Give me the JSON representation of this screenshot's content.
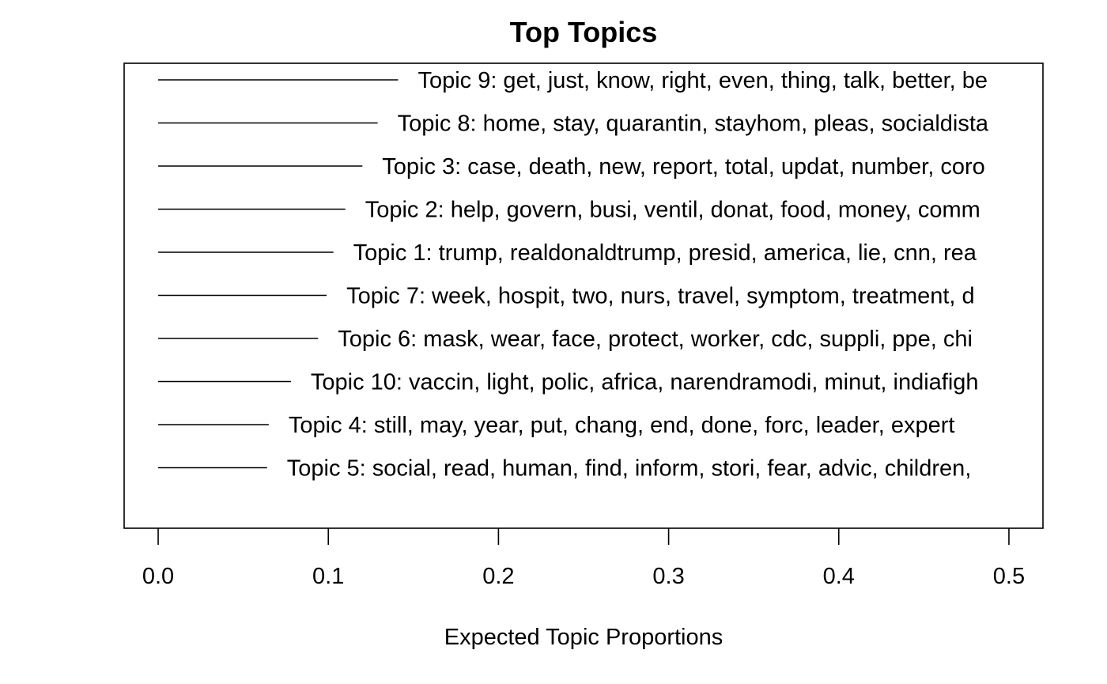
{
  "chart_data": {
    "type": "bar",
    "orientation": "horizontal",
    "title": "Top Topics",
    "xlabel": "Expected Topic Proportions",
    "ylabel": "",
    "xlim": [
      -0.02,
      0.52
    ],
    "xticks": [
      0.0,
      0.1,
      0.2,
      0.3,
      0.4,
      0.5
    ],
    "xtick_labels": [
      "0.0",
      "0.1",
      "0.2",
      "0.3",
      "0.4",
      "0.5"
    ],
    "grid": false,
    "series": [
      {
        "categories": [
          "Topic 9: get, just, know, right, even, thing, talk, better, be",
          "Topic 8: home, stay, quarantin, stayhom, pleas, socialdista",
          "Topic 3: case, death, new, report, total, updat, number, coro",
          "Topic 2: help, govern, busi, ventil, donat, food, money, comm",
          "Topic 1: trump, realdonaldtrump, presid, america, lie, cnn, rea",
          "Topic 7: week, hospit, two, nurs, travel, symptom, treatment, d",
          "Topic 6: mask, wear, face, protect, worker, cdc, suppli, ppe, chi",
          "Topic 10: vaccin, light, polic, africa, narendramodi, minut, indiafigh",
          "Topic 4: still, may, year, put, chang, end, done, forc, leader, expert",
          "Topic 5: social, read, human, find, inform, stori, fear, advic, children,"
        ],
        "values": [
          0.141,
          0.129,
          0.12,
          0.11,
          0.103,
          0.099,
          0.094,
          0.078,
          0.065,
          0.064
        ]
      }
    ]
  }
}
